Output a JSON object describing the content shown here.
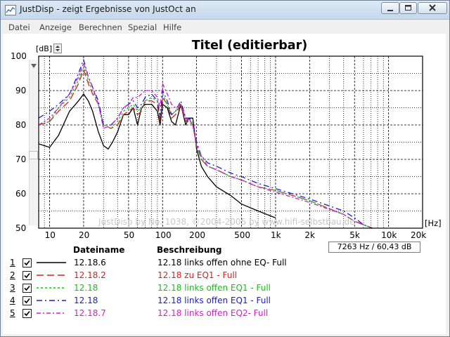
{
  "window": {
    "title": "JustDisp - zeigt Ergebnisse von JustOct an",
    "controls": {
      "minimize": "minimize-icon",
      "maximize": "maximize-icon",
      "close": "close-icon"
    }
  },
  "menu": [
    "Datei",
    "Anzeige",
    "Berechnen",
    "Spezial",
    "Hilfe"
  ],
  "chart": {
    "y_unit": "[dB]",
    "x_unit": "[Hz]",
    "watermark": "JustDisp by No. 1038, ©2004-2005 by www.hifi-selbstbau.de",
    "cursor_readout": "7263 Hz / 60,43 dB"
  },
  "chart_data": {
    "type": "line",
    "title": "Titel (editierbar)",
    "xlabel": "[Hz]",
    "ylabel": "[dB]",
    "x_scale": "log",
    "xlim": [
      8,
      20000
    ],
    "ylim": [
      50,
      100
    ],
    "grid": true,
    "y_ticks": [
      "100",
      "90",
      "80",
      "70",
      "60",
      "50"
    ],
    "x_ticks": [
      {
        "v": 10,
        "label": "10"
      },
      {
        "v": 20,
        "label": "20"
      },
      {
        "v": 50,
        "label": "50"
      },
      {
        "v": 100,
        "label": "100"
      },
      {
        "v": 200,
        "label": "200"
      },
      {
        "v": 500,
        "label": "500"
      },
      {
        "v": 1000,
        "label": "1k"
      },
      {
        "v": 2000,
        "label": "2k"
      },
      {
        "v": 5000,
        "label": "5k"
      },
      {
        "v": 10000,
        "label": "10k"
      },
      {
        "v": 20000,
        "label": "20k"
      }
    ],
    "series": [
      {
        "name": "12.18.6",
        "color": "#000000",
        "dash": "",
        "points": [
          [
            8,
            74.5
          ],
          [
            10,
            73.5
          ],
          [
            12,
            77
          ],
          [
            15,
            84
          ],
          [
            18,
            87
          ],
          [
            20,
            89
          ],
          [
            22,
            87
          ],
          [
            24,
            84
          ],
          [
            27,
            78
          ],
          [
            30,
            74
          ],
          [
            33,
            73
          ],
          [
            36,
            75
          ],
          [
            40,
            78
          ],
          [
            45,
            83
          ],
          [
            50,
            83
          ],
          [
            55,
            85
          ],
          [
            60,
            80
          ],
          [
            65,
            85
          ],
          [
            70,
            86
          ],
          [
            80,
            86
          ],
          [
            90,
            84
          ],
          [
            95,
            80
          ],
          [
            100,
            86
          ],
          [
            110,
            85
          ],
          [
            120,
            81
          ],
          [
            130,
            80
          ],
          [
            145,
            86
          ],
          [
            160,
            80
          ],
          [
            170,
            82
          ],
          [
            185,
            82
          ],
          [
            200,
            73
          ],
          [
            220,
            68
          ],
          [
            250,
            65
          ],
          [
            300,
            62
          ],
          [
            400,
            59.5
          ],
          [
            500,
            57
          ],
          [
            700,
            55
          ],
          [
            1000,
            53
          ]
        ]
      },
      {
        "name": "12.18.2",
        "color": "#d42020",
        "dash": "10,5",
        "points": [
          [
            8,
            80
          ],
          [
            10,
            81
          ],
          [
            12,
            84
          ],
          [
            15,
            87
          ],
          [
            18,
            92
          ],
          [
            20,
            96
          ],
          [
            22,
            92
          ],
          [
            24,
            89
          ],
          [
            27,
            86
          ],
          [
            30,
            80
          ],
          [
            35,
            79
          ],
          [
            40,
            80
          ],
          [
            45,
            83
          ],
          [
            50,
            84
          ],
          [
            55,
            85
          ],
          [
            60,
            83
          ],
          [
            65,
            84
          ],
          [
            70,
            87
          ],
          [
            80,
            87
          ],
          [
            90,
            86
          ],
          [
            95,
            81
          ],
          [
            100,
            88
          ],
          [
            110,
            86
          ],
          [
            120,
            82
          ],
          [
            130,
            83
          ],
          [
            145,
            86
          ],
          [
            160,
            81
          ],
          [
            170,
            82
          ],
          [
            185,
            80
          ],
          [
            200,
            74
          ],
          [
            220,
            70
          ],
          [
            250,
            68
          ],
          [
            300,
            67
          ],
          [
            400,
            65
          ],
          [
            500,
            64
          ],
          [
            700,
            62
          ],
          [
            1000,
            61
          ],
          [
            2000,
            58
          ],
          [
            4000,
            54
          ],
          [
            5000,
            52
          ],
          [
            6000,
            51
          ],
          [
            7200,
            50
          ]
        ]
      },
      {
        "name": "12.18",
        "color": "#18c018",
        "dash": "3,3",
        "points": [
          [
            8,
            80
          ],
          [
            10,
            81
          ],
          [
            12,
            85
          ],
          [
            15,
            88
          ],
          [
            18,
            93
          ],
          [
            20,
            97
          ],
          [
            22,
            93
          ],
          [
            24,
            90
          ],
          [
            27,
            86
          ],
          [
            30,
            80
          ],
          [
            35,
            79
          ],
          [
            40,
            81
          ],
          [
            45,
            84
          ],
          [
            50,
            85
          ],
          [
            55,
            86
          ],
          [
            60,
            84
          ],
          [
            65,
            85
          ],
          [
            70,
            87
          ],
          [
            80,
            88
          ],
          [
            90,
            87
          ],
          [
            95,
            82
          ],
          [
            100,
            89
          ],
          [
            110,
            86
          ],
          [
            120,
            83
          ],
          [
            130,
            84
          ],
          [
            145,
            86
          ],
          [
            160,
            82
          ],
          [
            170,
            82
          ],
          [
            185,
            80
          ],
          [
            200,
            74
          ],
          [
            220,
            70
          ],
          [
            250,
            68
          ],
          [
            300,
            67
          ],
          [
            400,
            65
          ],
          [
            500,
            64
          ],
          [
            700,
            62
          ],
          [
            1000,
            61
          ],
          [
            2000,
            58
          ],
          [
            4000,
            54
          ],
          [
            5000,
            52
          ],
          [
            6000,
            51
          ],
          [
            7200,
            50
          ]
        ]
      },
      {
        "name": "12.18",
        "color": "#1c1cc8",
        "dash": "8,4,2,4",
        "points": [
          [
            8,
            82
          ],
          [
            10,
            84
          ],
          [
            12,
            86
          ],
          [
            15,
            89
          ],
          [
            18,
            95
          ],
          [
            20,
            99
          ],
          [
            22,
            94
          ],
          [
            24,
            91
          ],
          [
            27,
            87
          ],
          [
            30,
            80
          ],
          [
            35,
            80
          ],
          [
            40,
            82
          ],
          [
            45,
            85
          ],
          [
            50,
            86
          ],
          [
            55,
            87
          ],
          [
            60,
            85
          ],
          [
            65,
            86
          ],
          [
            70,
            88
          ],
          [
            80,
            89
          ],
          [
            90,
            87
          ],
          [
            95,
            82
          ],
          [
            100,
            90
          ],
          [
            110,
            87
          ],
          [
            120,
            83
          ],
          [
            130,
            84
          ],
          [
            145,
            87
          ],
          [
            160,
            82
          ],
          [
            170,
            82
          ],
          [
            185,
            81
          ],
          [
            200,
            75
          ],
          [
            220,
            71
          ],
          [
            250,
            69
          ],
          [
            300,
            68
          ],
          [
            400,
            66
          ],
          [
            500,
            65
          ],
          [
            700,
            63
          ],
          [
            1000,
            61.5
          ],
          [
            2000,
            58.5
          ],
          [
            4000,
            55
          ],
          [
            5000,
            53
          ],
          [
            6000,
            51
          ],
          [
            7200,
            50
          ]
        ]
      },
      {
        "name": "12.18.7",
        "color": "#d81ad8",
        "dash": "6,3,2,3",
        "points": [
          [
            8,
            80
          ],
          [
            10,
            82
          ],
          [
            12,
            85
          ],
          [
            15,
            89
          ],
          [
            18,
            94
          ],
          [
            20,
            98
          ],
          [
            22,
            94
          ],
          [
            24,
            91
          ],
          [
            27,
            86
          ],
          [
            30,
            79
          ],
          [
            35,
            80
          ],
          [
            40,
            82
          ],
          [
            45,
            85
          ],
          [
            50,
            86
          ],
          [
            55,
            88
          ],
          [
            60,
            88
          ],
          [
            65,
            89
          ],
          [
            70,
            90
          ],
          [
            80,
            90
          ],
          [
            90,
            88
          ],
          [
            95,
            85
          ],
          [
            100,
            92
          ],
          [
            110,
            89
          ],
          [
            120,
            86
          ],
          [
            130,
            85
          ],
          [
            145,
            86
          ],
          [
            160,
            82
          ],
          [
            170,
            81
          ],
          [
            185,
            80
          ],
          [
            200,
            74
          ],
          [
            220,
            71
          ],
          [
            250,
            68
          ],
          [
            300,
            67
          ],
          [
            400,
            65
          ],
          [
            500,
            64
          ],
          [
            700,
            62
          ],
          [
            1000,
            60.5
          ],
          [
            2000,
            57.5
          ],
          [
            4000,
            54
          ],
          [
            5000,
            52
          ],
          [
            6000,
            51
          ],
          [
            7200,
            50
          ]
        ]
      }
    ]
  },
  "legend": {
    "headers": {
      "name": "Dateiname",
      "desc": "Beschreibung"
    },
    "rows": [
      {
        "num": "1",
        "name": "12.18.6",
        "desc": "12.18 links offen ohne EQ- Full",
        "color": "#000000",
        "dash": ""
      },
      {
        "num": "2",
        "name": "12.18.2",
        "desc": "12.18 zu EQ1 - Full",
        "color": "#d42020",
        "dash": "10,5"
      },
      {
        "num": "3",
        "name": "12.18",
        "desc": "12.18 links offen EQ1 - Full",
        "color": "#18c018",
        "dash": "3,3"
      },
      {
        "num": "4",
        "name": "12.18",
        "desc": "12.18 links offen EQ1 - Full",
        "color": "#1c1cc8",
        "dash": "8,4,2,4"
      },
      {
        "num": "5",
        "name": "12.18.7",
        "desc": "12.18 links offen EQ2- Full",
        "color": "#d81ad8",
        "dash": "6,3,2,3"
      }
    ]
  }
}
